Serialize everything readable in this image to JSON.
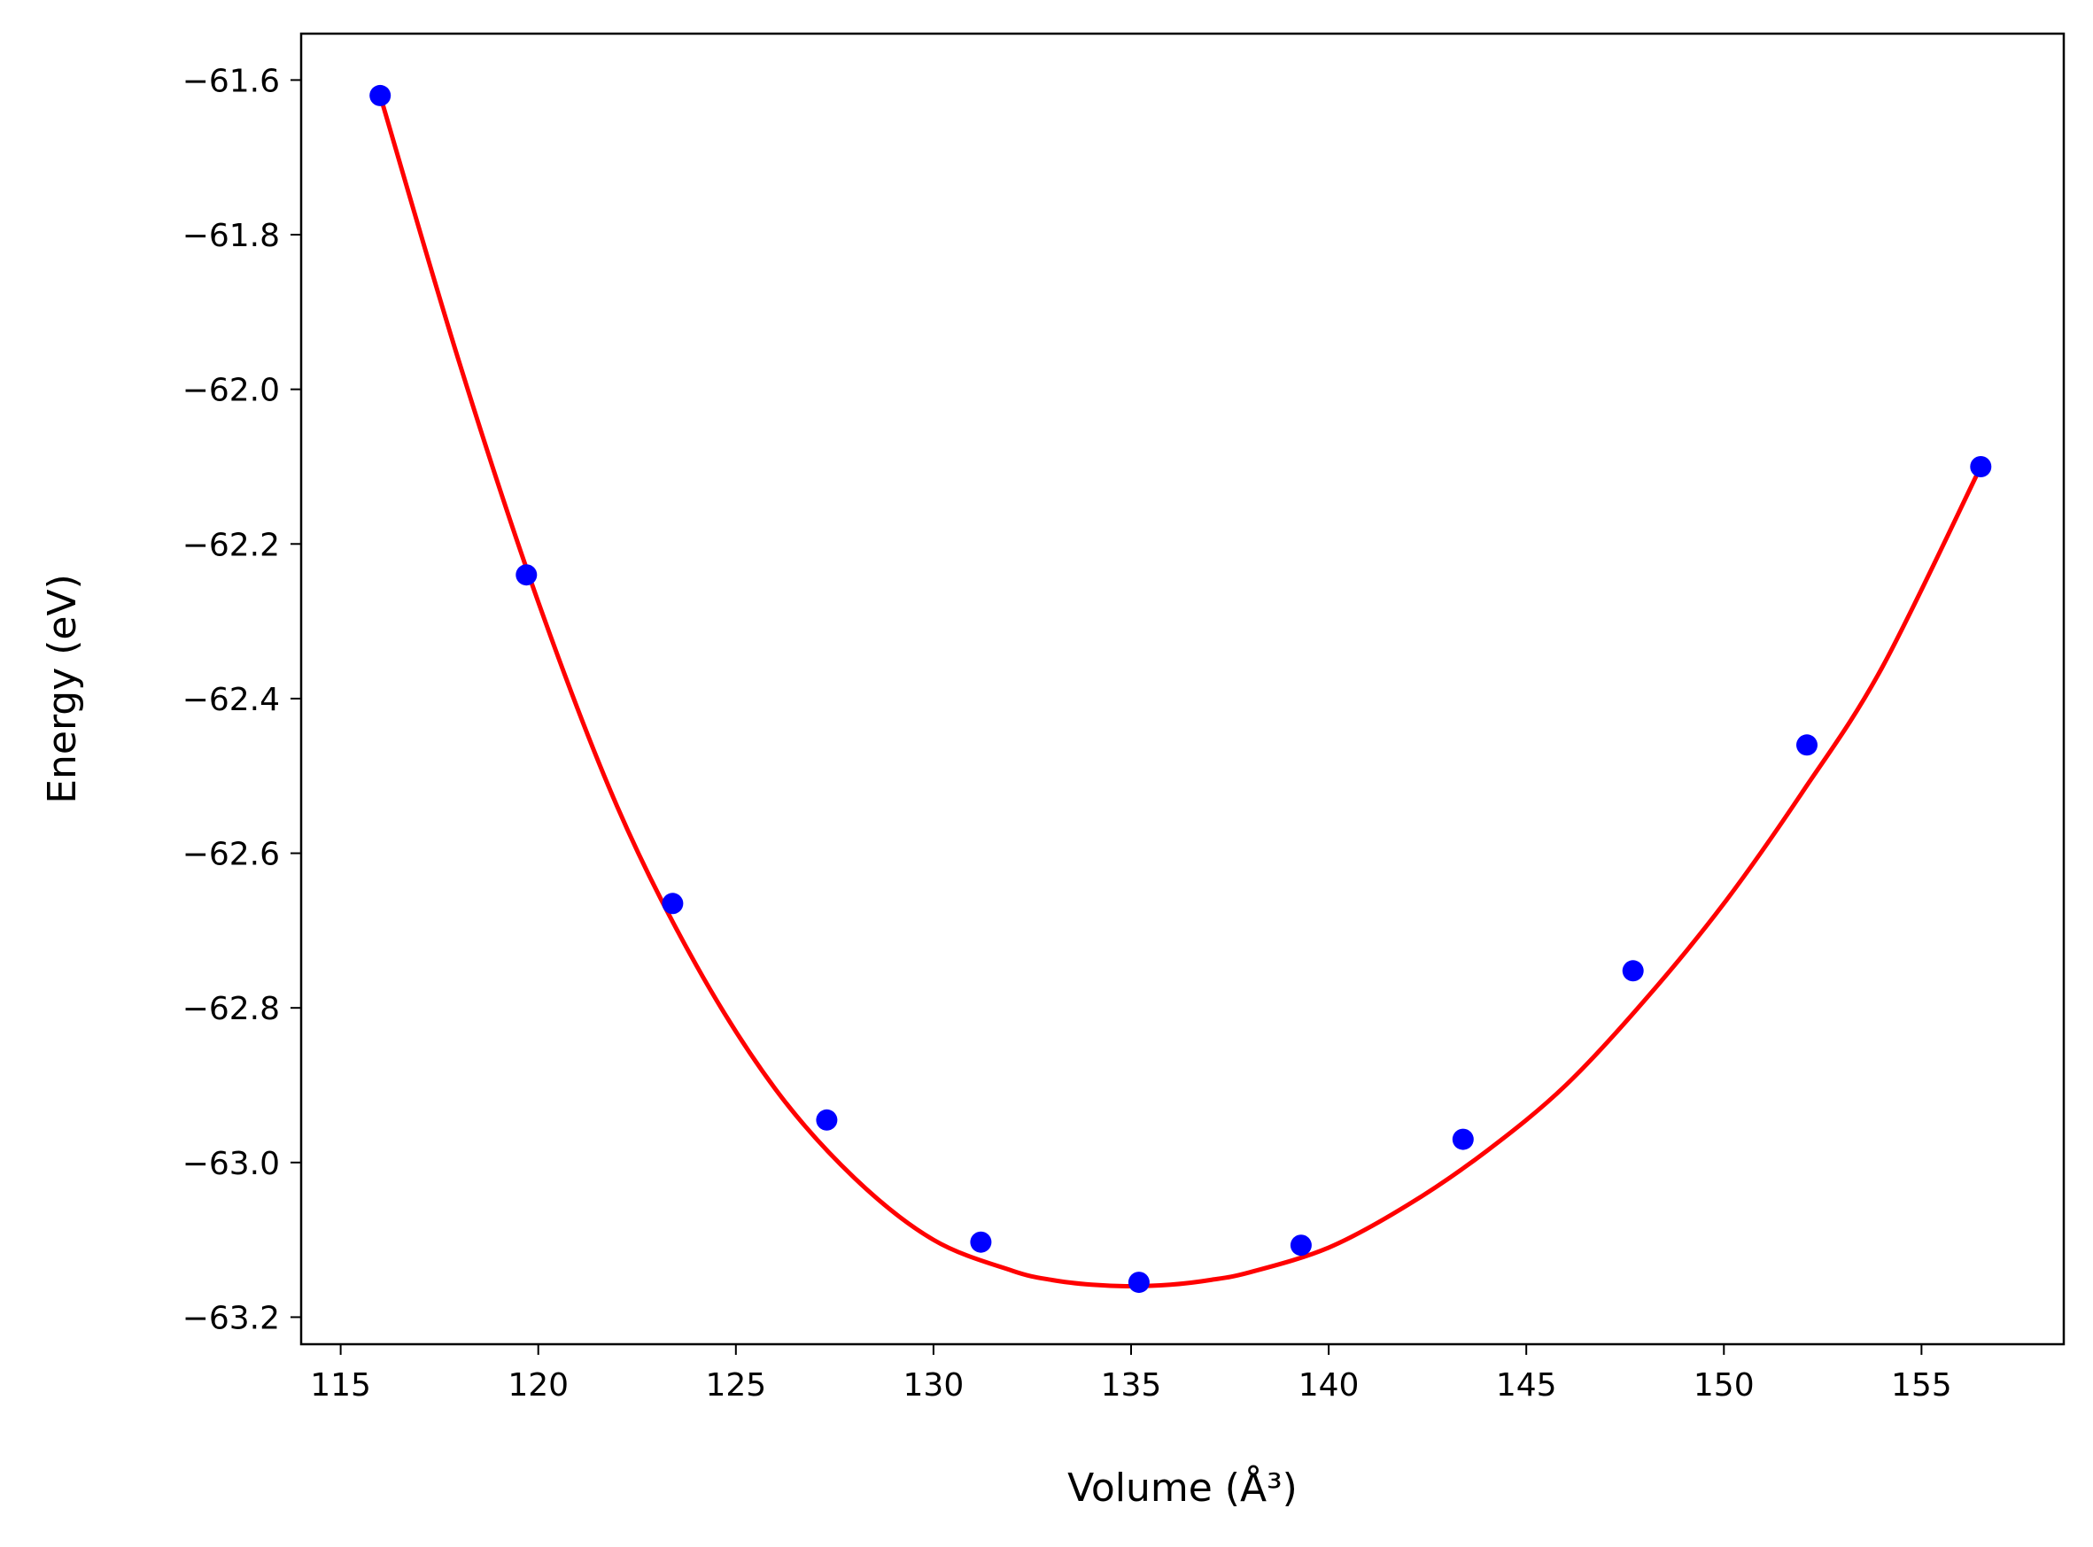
{
  "chart_data": {
    "type": "scatter",
    "xlabel": "Volume (Å³)",
    "ylabel": "Energy (eV)",
    "xlim": [
      114.0,
      158.6
    ],
    "ylim": [
      -63.235,
      -61.54
    ],
    "xticks": [
      115,
      120,
      125,
      130,
      135,
      140,
      145,
      150,
      155
    ],
    "yticks": [
      -61.6,
      -61.8,
      -62.0,
      -62.2,
      -62.4,
      -62.6,
      -62.8,
      -63.0,
      -63.2
    ],
    "xtick_labels": [
      "115",
      "120",
      "125",
      "130",
      "135",
      "140",
      "145",
      "150",
      "155"
    ],
    "ytick_labels": [
      "−61.6",
      "−61.8",
      "−62.0",
      "−62.2",
      "−62.4",
      "−62.6",
      "−62.8",
      "−63.0",
      "−63.2"
    ],
    "grid": false,
    "series": [
      {
        "kind": "points",
        "color": "#0000ff",
        "x": [
          116.0,
          119.7,
          123.4,
          127.3,
          131.2,
          135.2,
          139.3,
          143.4,
          147.7,
          152.1,
          156.5
        ],
        "y": [
          -61.62,
          -62.24,
          -62.665,
          -62.945,
          -63.103,
          -63.155,
          -63.107,
          -62.97,
          -62.752,
          -62.46,
          -62.1
        ]
      },
      {
        "kind": "fit-curve",
        "color": "#ff0000",
        "x": [
          116.0,
          118.0,
          120.0,
          122.0,
          124.0,
          126.0,
          128.0,
          130.0,
          132.0,
          133.0,
          134.0,
          135.0,
          136.0,
          137.0,
          138.0,
          140.0,
          142.0,
          144.0,
          146.0,
          148.0,
          150.0,
          152.0,
          154.0,
          156.5
        ],
        "y": [
          -61.62,
          -61.965,
          -62.275,
          -62.54,
          -62.745,
          -62.905,
          -63.02,
          -63.1,
          -63.14,
          -63.152,
          -63.158,
          -63.16,
          -63.158,
          -63.152,
          -63.142,
          -63.11,
          -63.055,
          -62.985,
          -62.9,
          -62.79,
          -62.665,
          -62.52,
          -62.36,
          -62.1
        ]
      }
    ]
  }
}
